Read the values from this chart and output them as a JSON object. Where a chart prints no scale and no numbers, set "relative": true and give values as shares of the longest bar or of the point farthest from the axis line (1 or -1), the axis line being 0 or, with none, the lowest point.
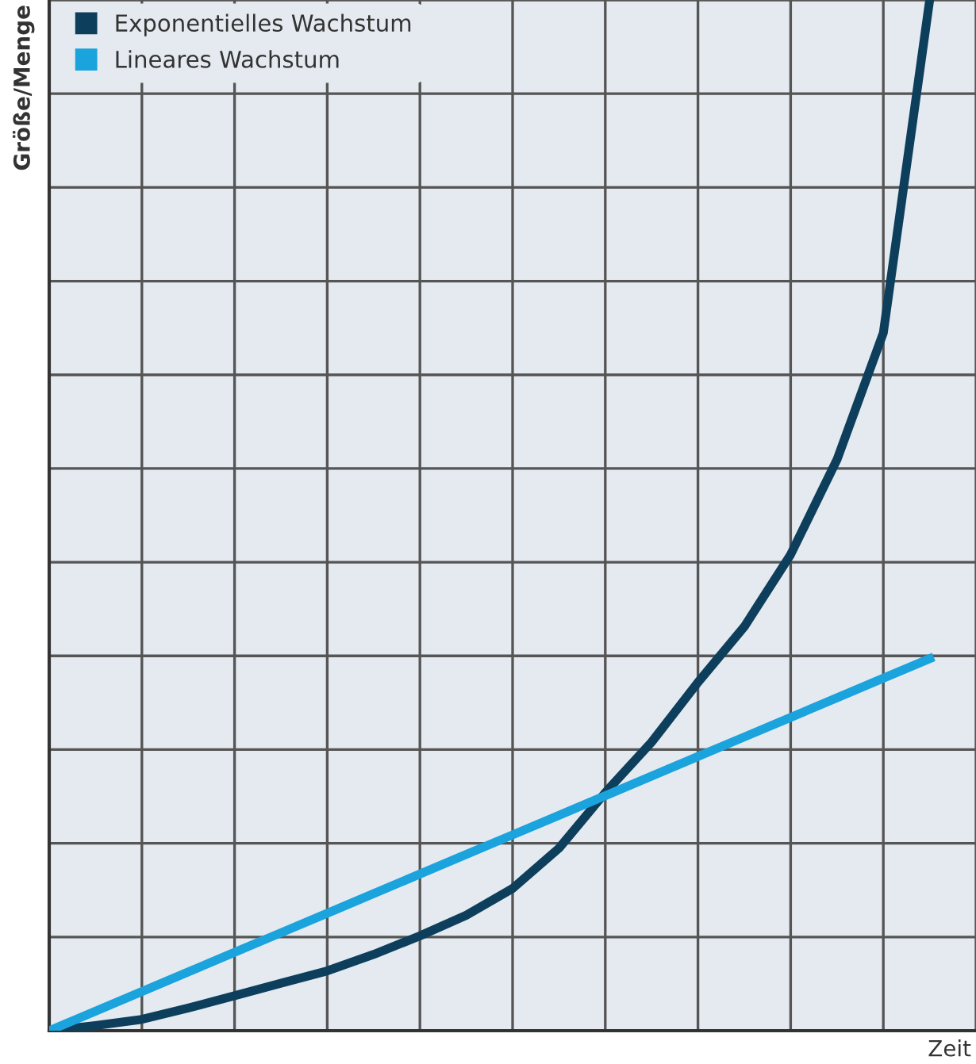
{
  "chart_data": {
    "type": "line",
    "relative": true,
    "xlabel": "Zeit",
    "ylabel": "Größe/Menge",
    "categories": [
      null,
      null,
      null,
      null,
      null,
      null,
      null,
      null,
      null,
      null,
      null,
      null,
      null,
      null,
      null,
      null,
      null,
      null,
      null,
      null
    ],
    "series": [
      {
        "name": "Exponentielles Wachstum",
        "color": "#0d3f5c",
        "values": [
          0,
          0.005,
          0.011,
          0.022,
          0.034,
          0.046,
          0.058,
          0.074,
          0.092,
          0.112,
          0.138,
          0.177,
          0.231,
          0.28,
          0.338,
          0.392,
          0.462,
          0.554,
          0.677,
          1
        ]
      },
      {
        "name": "Lineares Wachstum",
        "color": "#1aa3dc",
        "values": [
          0,
          0.019,
          0.038,
          0.057,
          0.076,
          0.095,
          0.114,
          0.133,
          0.152,
          0.171,
          0.19,
          0.209,
          0.228,
          0.247,
          0.266,
          0.285,
          0.304,
          0.323,
          0.342,
          0.361
        ]
      }
    ],
    "grid": true,
    "legend": "top left",
    "tick_labels": false,
    "marker": "none",
    "line_style": "solid"
  }
}
